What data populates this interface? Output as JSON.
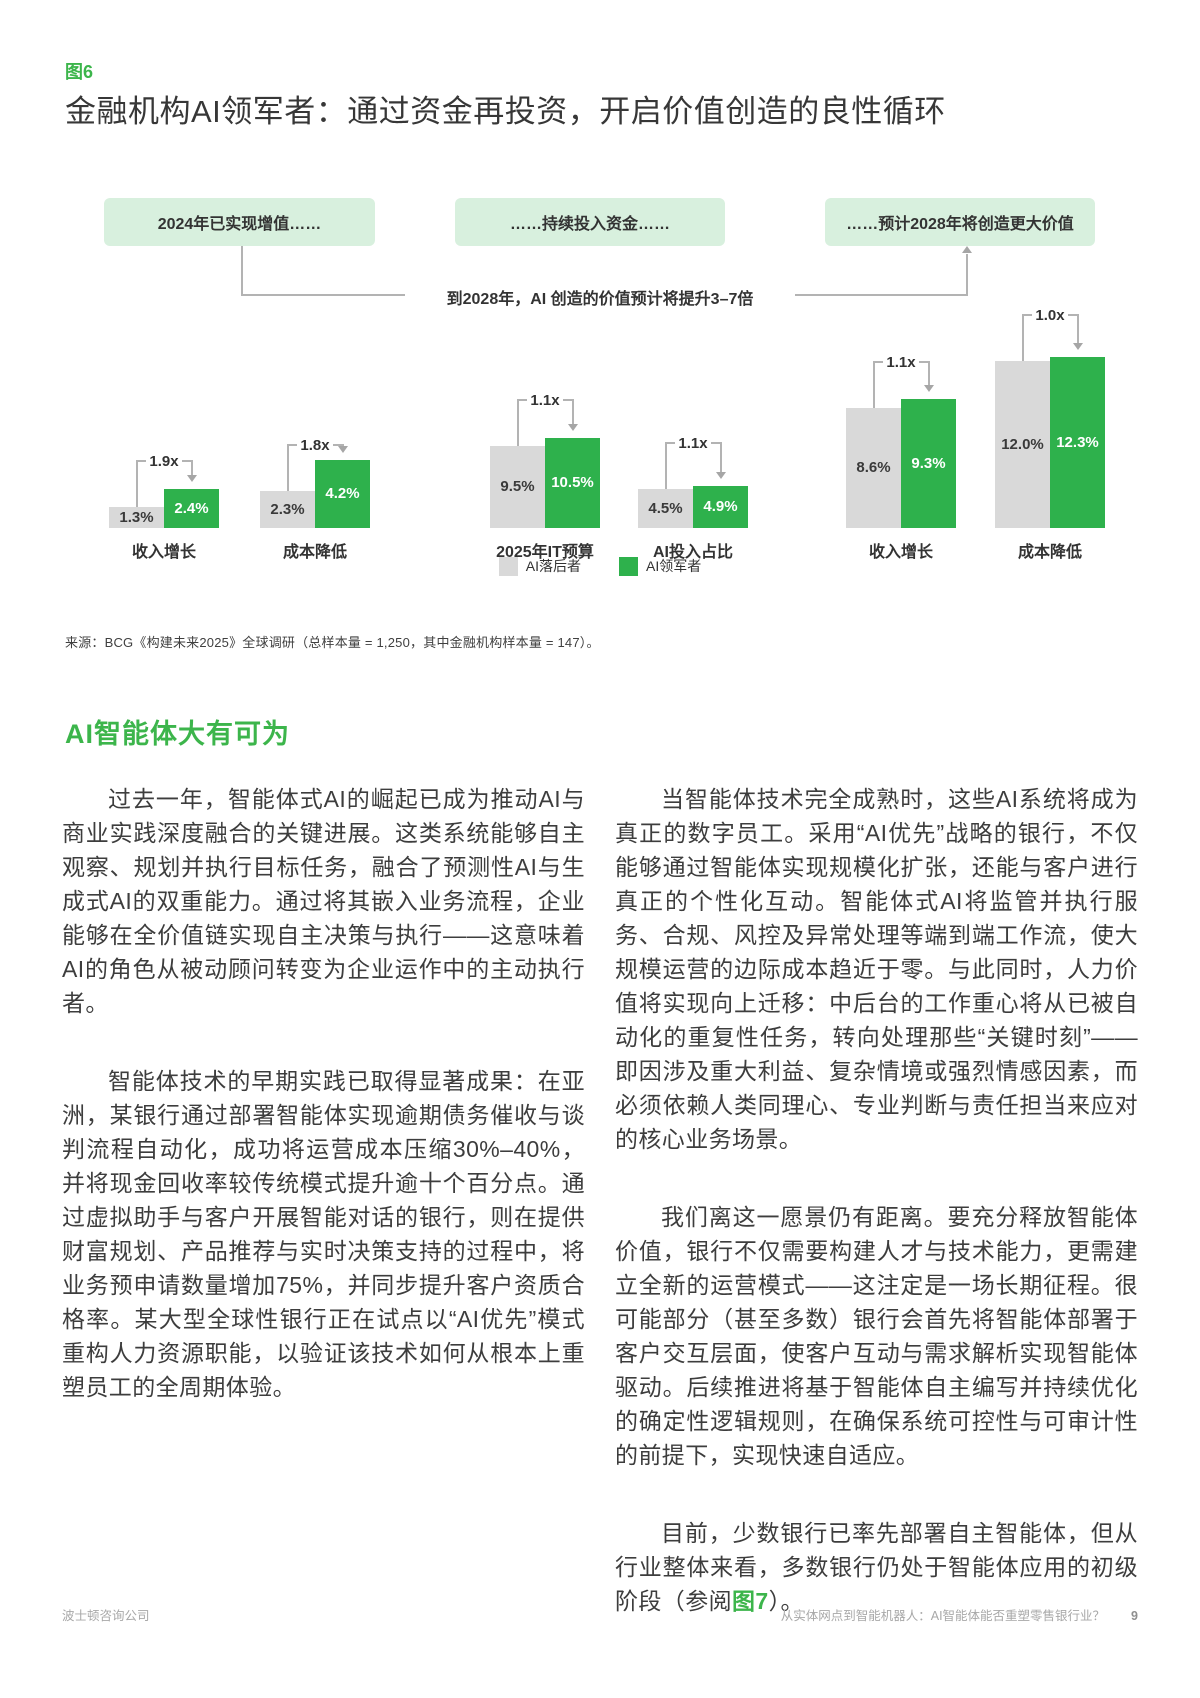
{
  "figure": {
    "tag": "图6",
    "title": "金融机构AI领军者：通过资金再投资，开启价值创造的良性循环"
  },
  "chart_data": {
    "type": "bar",
    "unit": "%",
    "callout": "到2028年，AI 创造的价值预计将提升3–7倍",
    "legend": [
      {
        "label": "AI落后者",
        "color": "#d9d9d9"
      },
      {
        "label": "AI领军者",
        "color": "#2eb14c"
      }
    ],
    "legend_position": "bottom-center",
    "sections": [
      {
        "header": "2024年已实现增值……",
        "groups": [
          {
            "label": "收入增长",
            "laggard": 1.3,
            "leader": 2.4,
            "laggard_label": "1.3%",
            "leader_label": "2.4%",
            "multiplier": "1.9x"
          },
          {
            "label": "成本降低",
            "laggard": 2.3,
            "leader": 4.2,
            "laggard_label": "2.3%",
            "leader_label": "4.2%",
            "multiplier": "1.8x"
          }
        ]
      },
      {
        "header": "……持续投入资金……",
        "groups": [
          {
            "label": "2025年IT预算",
            "laggard": 9.5,
            "leader": 10.5,
            "laggard_label": "9.5%",
            "leader_label": "10.5%",
            "multiplier": "1.1x"
          },
          {
            "label": "AI投入占比",
            "laggard": 4.5,
            "leader": 4.9,
            "laggard_label": "4.5%",
            "leader_label": "4.9%",
            "multiplier": "1.1x"
          }
        ]
      },
      {
        "header": "……预计2028年将创造更大价值",
        "groups": [
          {
            "label": "收入增长",
            "laggard": 8.6,
            "leader": 9.3,
            "laggard_label": "8.6%",
            "leader_label": "9.3%",
            "multiplier": "1.1x"
          },
          {
            "label": "成本降低",
            "laggard": 12.0,
            "leader": 12.3,
            "laggard_label": "12.0%",
            "leader_label": "12.3%",
            "multiplier": "1.0x"
          }
        ]
      }
    ]
  },
  "source": "来源：BCG《构建未来2025》全球调研（总样本量 = 1,250，其中金融机构样本量 = 147）。",
  "section_heading": "AI智能体大有可为",
  "columns": {
    "left": [
      "过去一年，智能体式AI的崛起已成为推动AI与商业实践深度融合的关键进展。这类系统能够自主观察、规划并执行目标任务，融合了预测性AI与生成式AI的双重能力。通过将其嵌入业务流程，企业能够在全价值链实现自主决策与执行——这意味着AI的角色从被动顾问转变为企业运作中的主动执行者。",
      "智能体技术的早期实践已取得显著成果：在亚洲，某银行通过部署智能体实现逾期债务催收与谈判流程自动化，成功将运营成本压缩30%–40%，并将现金回收率较传统模式提升逾十个百分点。通过虚拟助手与客户开展智能对话的银行，则在提供财富规划、产品推荐与实时决策支持的过程中，将业务预申请数量增加75%，并同步提升客户资质合格率。某大型全球性银行正在试点以“AI优先”模式重构人力资源职能，以验证该技术如何从根本上重塑员工的全周期体验。"
    ],
    "right": [
      "当智能体技术完全成熟时，这些AI系统将成为真正的数字员工。采用“AI优先”战略的银行，不仅能够通过智能体实现规模化扩张，还能与客户进行真正的个性化互动。智能体式AI将监管并执行服务、合规、风控及异常处理等端到端工作流，使大规模运营的边际成本趋近于零。与此同时，人力价值将实现向上迁移：中后台的工作重心将从已被自动化的重复性任务，转向处理那些“关键时刻”——即因涉及重大利益、复杂情境或强烈情感因素，而必须依赖人类同理心、专业判断与责任担当来应对的核心业务场景。",
      "我们离这一愿景仍有距离。要充分释放智能体价值，银行不仅需要构建人才与技术能力，更需建立全新的运营模式——这注定是一场长期征程。很可能部分（甚至多数）银行会首先将智能体部署于客户交互层面，使客户互动与需求解析实现智能体驱动。后续推进将基于智能体自主编写并持续优化的确定性逻辑规则，在确保系统可控性与可审计性的前提下，实现快速自适应。"
    ],
    "last_paragraph": {
      "pre": "目前，少数银行已率先部署自主智能体，但从行业整体来看，多数银行仍处于智能体应用的初级阶段（参阅",
      "link": "图7",
      "post": "）。"
    }
  },
  "footer": {
    "company": "波士顿咨询公司",
    "doc_title": "从实体网点到智能机器人：AI智能体能否重塑零售银行业？",
    "page": "9"
  },
  "colors": {
    "leader_green": "#2eb14c",
    "light_green_box": "#d8f0de",
    "laggard_gray": "#d9d9d9",
    "heading_green": "#3cb54b"
  }
}
